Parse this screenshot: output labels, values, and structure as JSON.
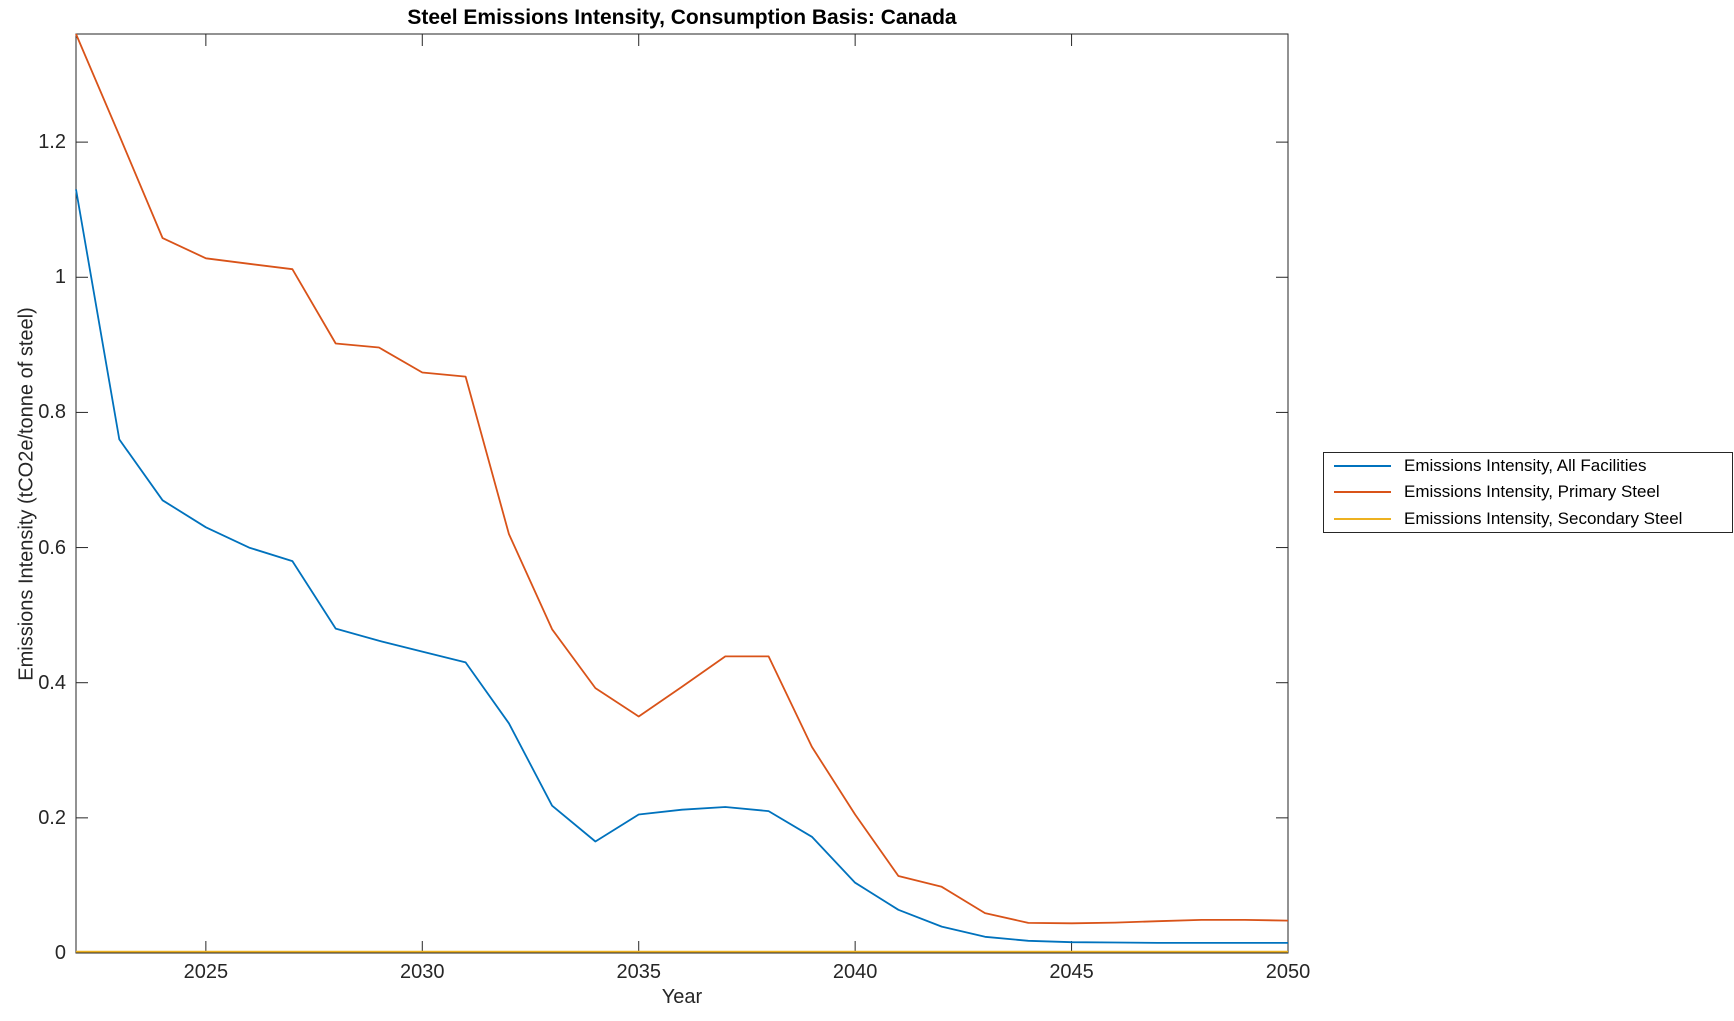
{
  "figure": {
    "background": "#ffffff"
  },
  "chart_data": {
    "type": "line",
    "title": "Steel Emissions Intensity, Consumption Basis: Canada",
    "xlabel": "Year",
    "ylabel": "Emissions Intensity (tCO2e/tonne of steel)",
    "xlim": [
      2022,
      2050
    ],
    "ylim": [
      0,
      1.36
    ],
    "grid": false,
    "legend_position": "outside-right",
    "axis_color": "#262626",
    "x_ticks": [
      2025,
      2030,
      2035,
      2040,
      2045,
      2050
    ],
    "x_tick_labels": [
      "2025",
      "2030",
      "2035",
      "2040",
      "2045",
      "2050"
    ],
    "y_ticks": [
      0,
      0.2,
      0.4,
      0.6,
      0.8,
      1,
      1.2
    ],
    "y_tick_labels": [
      "0",
      "0.2",
      "0.4",
      "0.6",
      "0.8",
      "1",
      "1.2"
    ],
    "x": [
      2022,
      2023,
      2024,
      2025,
      2026,
      2027,
      2028,
      2029,
      2030,
      2031,
      2032,
      2033,
      2034,
      2035,
      2036,
      2037,
      2038,
      2039,
      2040,
      2041,
      2042,
      2043,
      2044,
      2045,
      2046,
      2047,
      2048,
      2049,
      2050
    ],
    "series": [
      {
        "name": "Emissions Intensity, All Facilities",
        "color": "#0072BD",
        "values": [
          1.13,
          0.76,
          0.67,
          0.63,
          0.6,
          0.58,
          0.48,
          0.462,
          0.446,
          0.43,
          0.34,
          0.218,
          0.165,
          0.205,
          0.212,
          0.216,
          0.21,
          0.172,
          0.104,
          0.064,
          0.039,
          0.024,
          0.018,
          0.016,
          0.0155,
          0.015,
          0.015,
          0.015,
          0.015
        ]
      },
      {
        "name": "Emissions Intensity, Primary Steel",
        "color": "#D95319",
        "values": [
          1.36,
          1.21,
          1.058,
          1.028,
          1.02,
          1.012,
          0.902,
          0.896,
          0.859,
          0.853,
          0.62,
          0.479,
          0.392,
          0.35,
          0.394,
          0.439,
          0.439,
          0.305,
          0.205,
          0.114,
          0.098,
          0.059,
          0.0445,
          0.044,
          0.045,
          0.047,
          0.049,
          0.049,
          0.048
        ]
      },
      {
        "name": "Emissions Intensity, Secondary Steel",
        "color": "#EDB120",
        "values": [
          0.002,
          0.002,
          0.002,
          0.002,
          0.002,
          0.002,
          0.002,
          0.002,
          0.002,
          0.002,
          0.002,
          0.002,
          0.002,
          0.002,
          0.002,
          0.002,
          0.002,
          0.002,
          0.002,
          0.002,
          0.002,
          0.002,
          0.002,
          0.002,
          0.002,
          0.002,
          0.002,
          0.002,
          0.002
        ]
      }
    ]
  }
}
